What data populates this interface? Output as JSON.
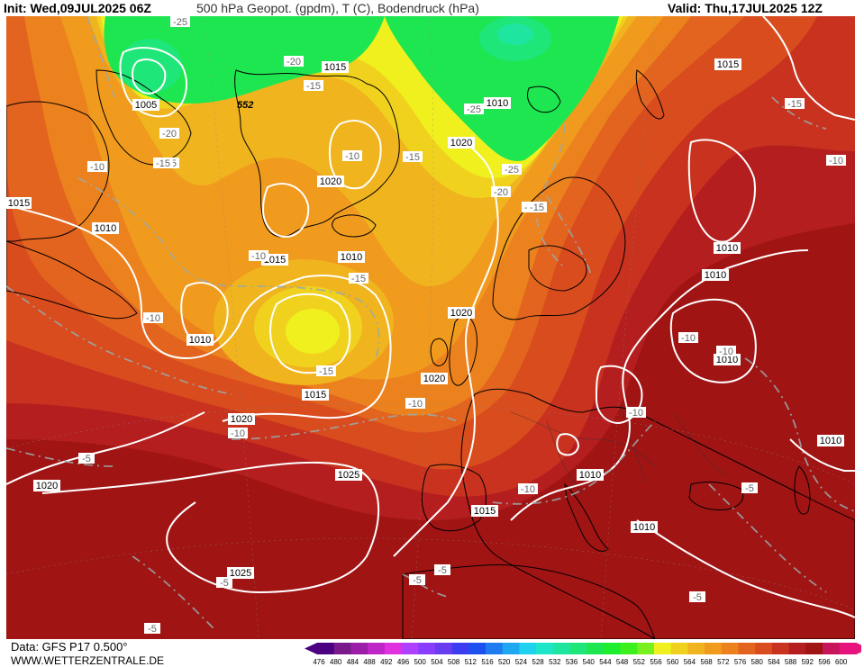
{
  "header": {
    "init": "Init: Wed,09JUL2025 06Z",
    "title": "500 hPa Geopot. (gpdm), T (C), Bodendruck (hPa)",
    "valid": "Valid: Thu,17JUL2025 12Z"
  },
  "footer": {
    "data_source": "Data: GFS P17 0.500°",
    "website": "WWW.WETTERZENTRALE.DE"
  },
  "legend": {
    "values": [
      "476",
      "480",
      "484",
      "488",
      "492",
      "496",
      "500",
      "504",
      "508",
      "512",
      "516",
      "520",
      "524",
      "528",
      "532",
      "536",
      "540",
      "544",
      "548",
      "552",
      "556",
      "560",
      "564",
      "568",
      "572",
      "576",
      "580",
      "584",
      "588",
      "592",
      "596",
      "600"
    ],
    "colors": [
      "#4b0082",
      "#7a1a8a",
      "#9c1ea8",
      "#c025c8",
      "#e030e0",
      "#b040ff",
      "#8a3cff",
      "#6a3cf0",
      "#3c3cf0",
      "#1e50f0",
      "#1e7cf0",
      "#1ea8f0",
      "#1ed2f0",
      "#1ee6c8",
      "#1ee6a0",
      "#1ee678",
      "#1ee650",
      "#1eee30",
      "#3cf01e",
      "#78f01e",
      "#f0f01e",
      "#f0d21e",
      "#f0b41e",
      "#f09a1e",
      "#ec821e",
      "#e2641e",
      "#d84c1e",
      "#c8321e",
      "#b41e1e",
      "#a01414",
      "#c8145a",
      "#e6147c"
    ]
  },
  "map": {
    "description_tags": [
      "500 hPa geopotential shading",
      "isobars",
      "temperature isotherms",
      "coastlines"
    ],
    "isobar_labels": [
      "1015",
      "1005",
      "1010",
      "1020",
      "1020",
      "1015",
      "1010",
      "1015",
      "1010",
      "1010",
      "1015",
      "1010",
      "1020",
      "1020",
      "1010",
      "1020",
      "1025",
      "1025",
      "1015",
      "1010",
      "1010",
      "1010",
      "1020",
      "1010",
      "1015"
    ],
    "temp_labels": [
      "-25",
      "-20",
      "-15",
      "-20",
      "-15",
      "-10",
      "-10",
      "-15",
      "-25",
      "-25",
      "-20",
      "-15",
      "-10",
      "-15",
      "-15",
      "-10",
      "-15",
      "-10",
      "-10",
      "-10",
      "-10",
      "-10",
      "-5",
      "-5",
      "-10",
      "-5",
      "-5",
      "-5",
      "-5",
      "-5",
      "-15",
      "-10",
      "-15"
    ],
    "geopot_label": "552"
  }
}
